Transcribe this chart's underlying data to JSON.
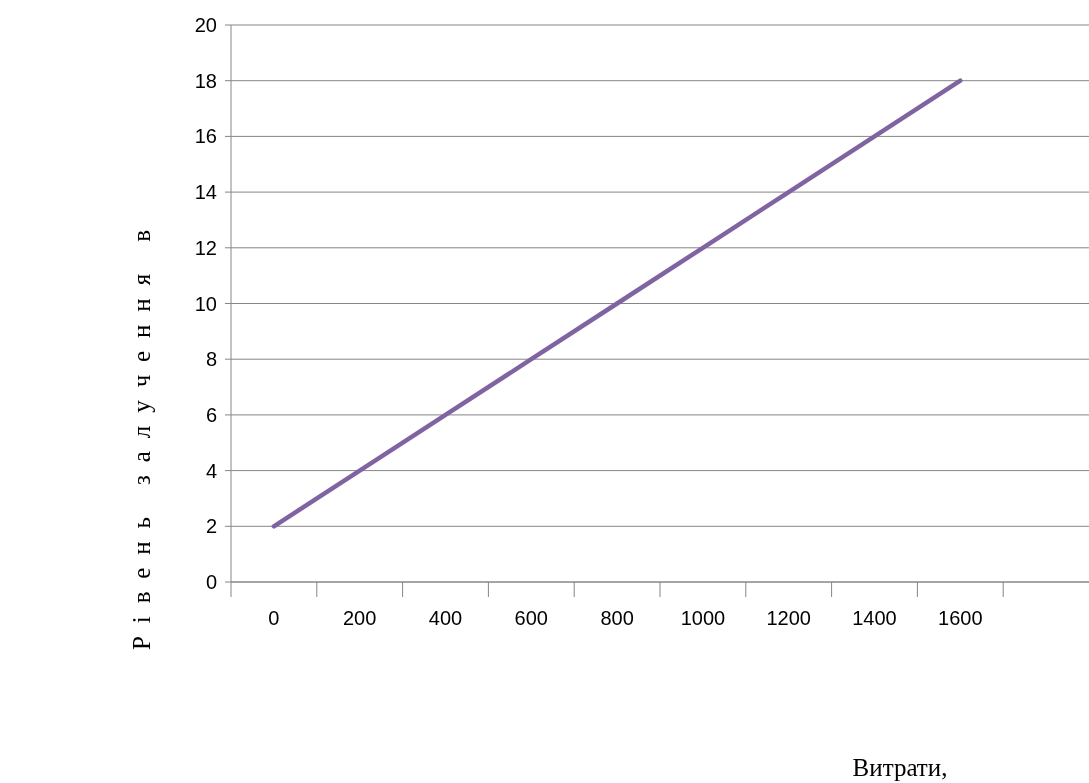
{
  "chart_data": {
    "type": "line",
    "xlabel": "Витрати,",
    "ylabel": "Рівень залучення в",
    "categories": [
      "0",
      "200",
      "400",
      "600",
      "800",
      "1000",
      "1200",
      "1400",
      "1600",
      null
    ],
    "series": [
      {
        "color": "#8064a2",
        "values": [
          2,
          4,
          6,
          8,
          10,
          12,
          14,
          16,
          18,
          null
        ]
      }
    ],
    "ylim": [
      0,
      20
    ],
    "yticks": [
      0,
      2,
      4,
      6,
      8,
      10,
      12,
      14,
      16,
      18,
      20
    ],
    "grid": "y",
    "line_style": "solid"
  }
}
